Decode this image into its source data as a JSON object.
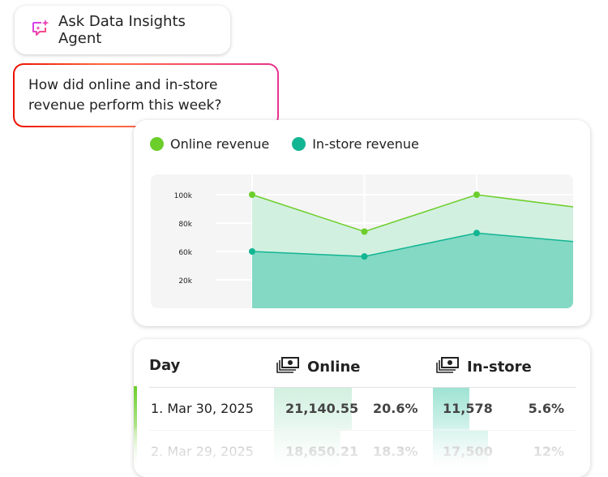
{
  "agent_button": {
    "label": "Ask Data Insights Agent",
    "icon": "sparkle-chat-icon"
  },
  "prompt": {
    "text": "How did online and in-store revenue perform this week?"
  },
  "colors": {
    "online": "#6cce2b",
    "online_fill": "#d2f0e0",
    "instore": "#12b592",
    "instore_fill": "#84d9c4",
    "plot_bg": "#f5f5f5"
  },
  "chart_data": {
    "type": "area",
    "legend_placement": "top-left",
    "y_tick_labels": [
      "100k",
      "80k",
      "60k",
      "20k"
    ],
    "y_tick_values": [
      100000,
      80000,
      60000,
      20000
    ],
    "x": [
      1,
      2,
      3,
      4
    ],
    "series": [
      {
        "name": "Online revenue",
        "values": [
          100000,
          74000,
          100000,
          90000
        ]
      },
      {
        "name": "In-store revenue",
        "values": [
          60000,
          53000,
          73000,
          66000
        ]
      }
    ],
    "grid": true
  },
  "table": {
    "headers": [
      "Day",
      "Online",
      "In-store"
    ],
    "header_icon": "money-stack-icon",
    "rows": [
      {
        "day": "1. Mar 30, 2025",
        "online": "21,140.55",
        "online_pct": "20.6%",
        "instore": "11,578",
        "instore_pct": "5.6%",
        "online_bar": 1.0,
        "instore_bar": 0.56
      },
      {
        "day": "2. Mar 29, 2025",
        "online": "18,650.21",
        "online_pct": "18.3%",
        "instore": "17,500",
        "instore_pct": "12%",
        "online_bar": 0.85,
        "instore_bar": 0.85
      }
    ]
  }
}
